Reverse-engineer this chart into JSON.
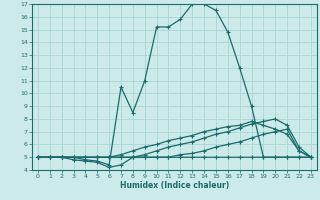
{
  "xlabel": "Humidex (Indice chaleur)",
  "bg_color": "#cceaea",
  "line_color": "#1a6b6b",
  "grid_color": "#aad4d4",
  "xlim": [
    -0.5,
    23.5
  ],
  "ylim": [
    4,
    17
  ],
  "xticks": [
    0,
    1,
    2,
    3,
    4,
    5,
    6,
    7,
    8,
    9,
    10,
    11,
    12,
    13,
    14,
    15,
    16,
    17,
    18,
    19,
    20,
    21,
    22,
    23
  ],
  "yticks": [
    4,
    5,
    6,
    7,
    8,
    9,
    10,
    11,
    12,
    13,
    14,
    15,
    16,
    17
  ],
  "series": [
    {
      "x": [
        0,
        1,
        2,
        3,
        4,
        5,
        6,
        7,
        8,
        9,
        10,
        11,
        12,
        13,
        14,
        15,
        16,
        17,
        18,
        19,
        20,
        21,
        22,
        23
      ],
      "y": [
        5,
        5,
        5,
        5,
        4.8,
        4.7,
        4.4,
        10.5,
        8.5,
        11.0,
        15.2,
        15.2,
        15.8,
        17.0,
        17.0,
        16.5,
        14.8,
        12.0,
        9.0,
        5.0,
        5.0,
        5.0,
        5.0,
        5.0
      ]
    },
    {
      "x": [
        0,
        1,
        2,
        3,
        4,
        5,
        6,
        7,
        8,
        9,
        10,
        11,
        12,
        13,
        14,
        15,
        16,
        17,
        18,
        19,
        20,
        21,
        22,
        23
      ],
      "y": [
        5.0,
        5.0,
        5.0,
        5.0,
        5.0,
        5.0,
        5.0,
        5.0,
        5.0,
        5.0,
        5.0,
        5.0,
        5.2,
        5.3,
        5.5,
        5.8,
        6.0,
        6.2,
        6.5,
        6.8,
        7.0,
        7.2,
        5.5,
        5.0
      ]
    },
    {
      "x": [
        0,
        1,
        2,
        3,
        4,
        5,
        6,
        7,
        8,
        9,
        10,
        11,
        12,
        13,
        14,
        15,
        16,
        17,
        18,
        19,
        20,
        21,
        22,
        23
      ],
      "y": [
        5.0,
        5.0,
        5.0,
        5.0,
        5.0,
        5.0,
        5.0,
        5.0,
        5.0,
        5.2,
        5.5,
        5.8,
        6.0,
        6.2,
        6.5,
        6.8,
        7.0,
        7.3,
        7.6,
        7.8,
        8.0,
        7.5,
        5.8,
        5.0
      ]
    },
    {
      "x": [
        0,
        1,
        2,
        3,
        4,
        5,
        6,
        7,
        8,
        9,
        10,
        11,
        12,
        13,
        14,
        15,
        16,
        17,
        18,
        19,
        20,
        21,
        22,
        23
      ],
      "y": [
        5.0,
        5.0,
        5.0,
        4.8,
        4.7,
        4.6,
        4.2,
        4.4,
        5.0,
        5.0,
        5.0,
        5.0,
        5.0,
        5.0,
        5.0,
        5.0,
        5.0,
        5.0,
        5.0,
        5.0,
        5.0,
        5.0,
        5.0,
        5.0
      ]
    },
    {
      "x": [
        0,
        2,
        5,
        6,
        7,
        8,
        9,
        10,
        11,
        12,
        13,
        14,
        15,
        16,
        17,
        18,
        19,
        20,
        21,
        22,
        23
      ],
      "y": [
        5.0,
        5.0,
        5.0,
        5.0,
        5.2,
        5.5,
        5.8,
        6.0,
        6.3,
        6.5,
        6.7,
        7.0,
        7.2,
        7.4,
        7.5,
        7.8,
        7.5,
        7.2,
        6.8,
        5.5,
        5.0
      ]
    }
  ]
}
